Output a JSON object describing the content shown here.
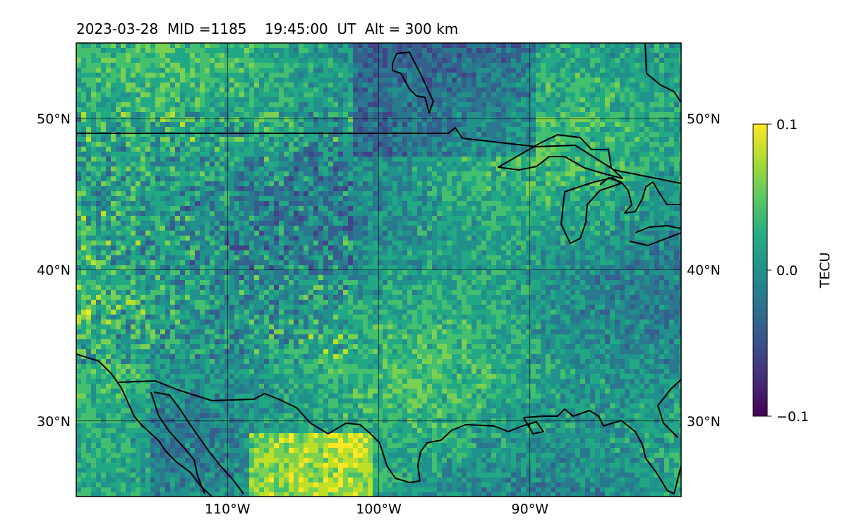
{
  "title": "2023-03-28  MID =1185    19:45:00  UT  Alt = 300 km",
  "map": {
    "projection": "lat-lon",
    "lon_range": [
      -120,
      -80
    ],
    "lat_range": [
      25,
      55
    ],
    "gridlines": true,
    "lat_ticks": [
      {
        "value": 30,
        "label": "30°N"
      },
      {
        "value": 40,
        "label": "40°N"
      },
      {
        "value": 50,
        "label": "50°N"
      }
    ],
    "lon_ticks": [
      {
        "value": -110,
        "label": "110°W"
      },
      {
        "value": -100,
        "label": "100°W"
      },
      {
        "value": -90,
        "label": "90°W"
      }
    ],
    "field": "detrended TEC (heatmap)",
    "colormap": "viridis"
  },
  "colorbar": {
    "label": "TECU",
    "min": -0.1,
    "max": 0.1,
    "ticks": [
      {
        "value": 0.1,
        "label": "0.1"
      },
      {
        "value": 0.0,
        "label": "0.0"
      },
      {
        "value": -0.1,
        "label": "−0.1"
      }
    ]
  }
}
